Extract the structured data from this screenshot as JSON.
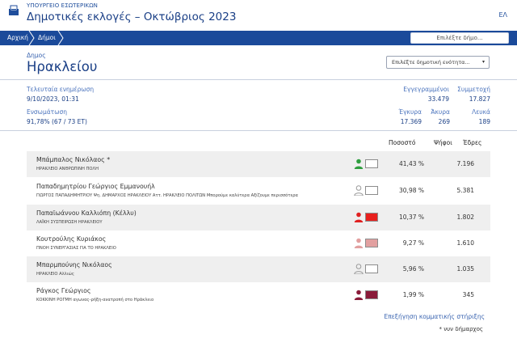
{
  "header": {
    "ministry": "ΥΠΟΥΡΓΕΙΟ ΕΣΩΤΕΡΙΚΩΝ",
    "title": "Δημοτικές εκλογές – Οκτώβριος 2023",
    "language": "ΕΛ"
  },
  "nav": {
    "breadcrumbs": [
      "Αρχική",
      "Δήμοι"
    ],
    "search_placeholder": "Επιλέξτε δήμο..."
  },
  "municipality": {
    "label": "Δημος",
    "name": "Ηρακλείου",
    "unit_select_placeholder": "Επιλέξτε δημοτική ενότητα..."
  },
  "stats": {
    "last_update_label": "Τελευταία ενημέρωση",
    "last_update_value": "9/10/2023, 01:31",
    "integration_label": "Ενσωμάτωση",
    "integration_value": "91,78% (67 / 73 ΕΤ)",
    "registered_label": "Εγγεγραμμένοι",
    "registered_value": "33.479",
    "turnout_label": "Συμμετοχή",
    "turnout_value": "17.827",
    "valid_label": "Έγκυρα",
    "valid_value": "17.369",
    "invalid_label": "Άκυρα",
    "invalid_value": "269",
    "blank_label": "Λευκά",
    "blank_value": "189"
  },
  "table": {
    "headers": {
      "percent": "Ποσοστό",
      "votes": "Ψήφοι",
      "seats": "Έδρες"
    },
    "rows": [
      {
        "name": "Μπάμπαλος Νικόλαος *",
        "party": "ΗΡΑΚΛΕΙΟ ΑΝΘΡΩΠΙΝΗ ΠΟΛΗ",
        "percent": "41,43 %",
        "votes": "7.196",
        "icon_color": "#2e9e3f",
        "swatch_color": "#ffffff"
      },
      {
        "name": "Παπαδημητρίου Γεώργιος Εμμανουήλ",
        "party": "ΓΙΩΡΓΟΣ ΠΑΠΑΔΗΜΗΤΡΙΟΥ Ψη. ΔΗΜΑΡΧΟΣ ΗΡΑΚΛΕΙΟΥ Αττ. ΗΡΑΚΛΕΙΟ ΠΟΛΙΤΩΝ Μπορούμε καλύτερα Αξίζουμε περισσότερα",
        "percent": "30,98 %",
        "votes": "5.381",
        "icon_color": "#9a9a9a",
        "swatch_color": "#ffffff"
      },
      {
        "name": "Παπαϊωάννου Καλλιόπη (Κέλλυ)",
        "party": "ΛΑΪΚΗ ΣΥΣΠΕΙΡΩΣΗ ΗΡΑΚΛΕΙΟΥ",
        "percent": "10,37 %",
        "votes": "1.802",
        "icon_color": "#e02020",
        "swatch_color": "#e8201e"
      },
      {
        "name": "Κουτρούλης Κυριάκος",
        "party": "ΠΝΟΗ ΣΥΝΕΡΓΑΣΙΑΣ ΓΙΑ ΤΟ ΗΡΑΚΛΕΙΟ",
        "percent": "9,27 %",
        "votes": "1.610",
        "icon_color": "#e2a0a0",
        "swatch_color": "#e2a0a0"
      },
      {
        "name": "Μπαρμπούνης Νικόλαος",
        "party": "ΗΡΑΚΛΕΙΟ Αλλιώς",
        "percent": "5,96 %",
        "votes": "1.035",
        "icon_color": "#9a9a9a",
        "swatch_color": "#ffffff"
      },
      {
        "name": "Ράγκος Γεώργιος",
        "party": "ΚΟΚΚΙΝΗ ΡΟΓΜΗ αγωνας-ρήξη-ανατροπή στο Ηράκλειο",
        "percent": "1,99 %",
        "votes": "345",
        "icon_color": "#8a1c3a",
        "swatch_color": "#8a1c3a"
      }
    ]
  },
  "footer": {
    "support_link": "Επεξήγηση κομματικής στήριξης",
    "incumbent_note": "* νυν δήμαρχος"
  }
}
